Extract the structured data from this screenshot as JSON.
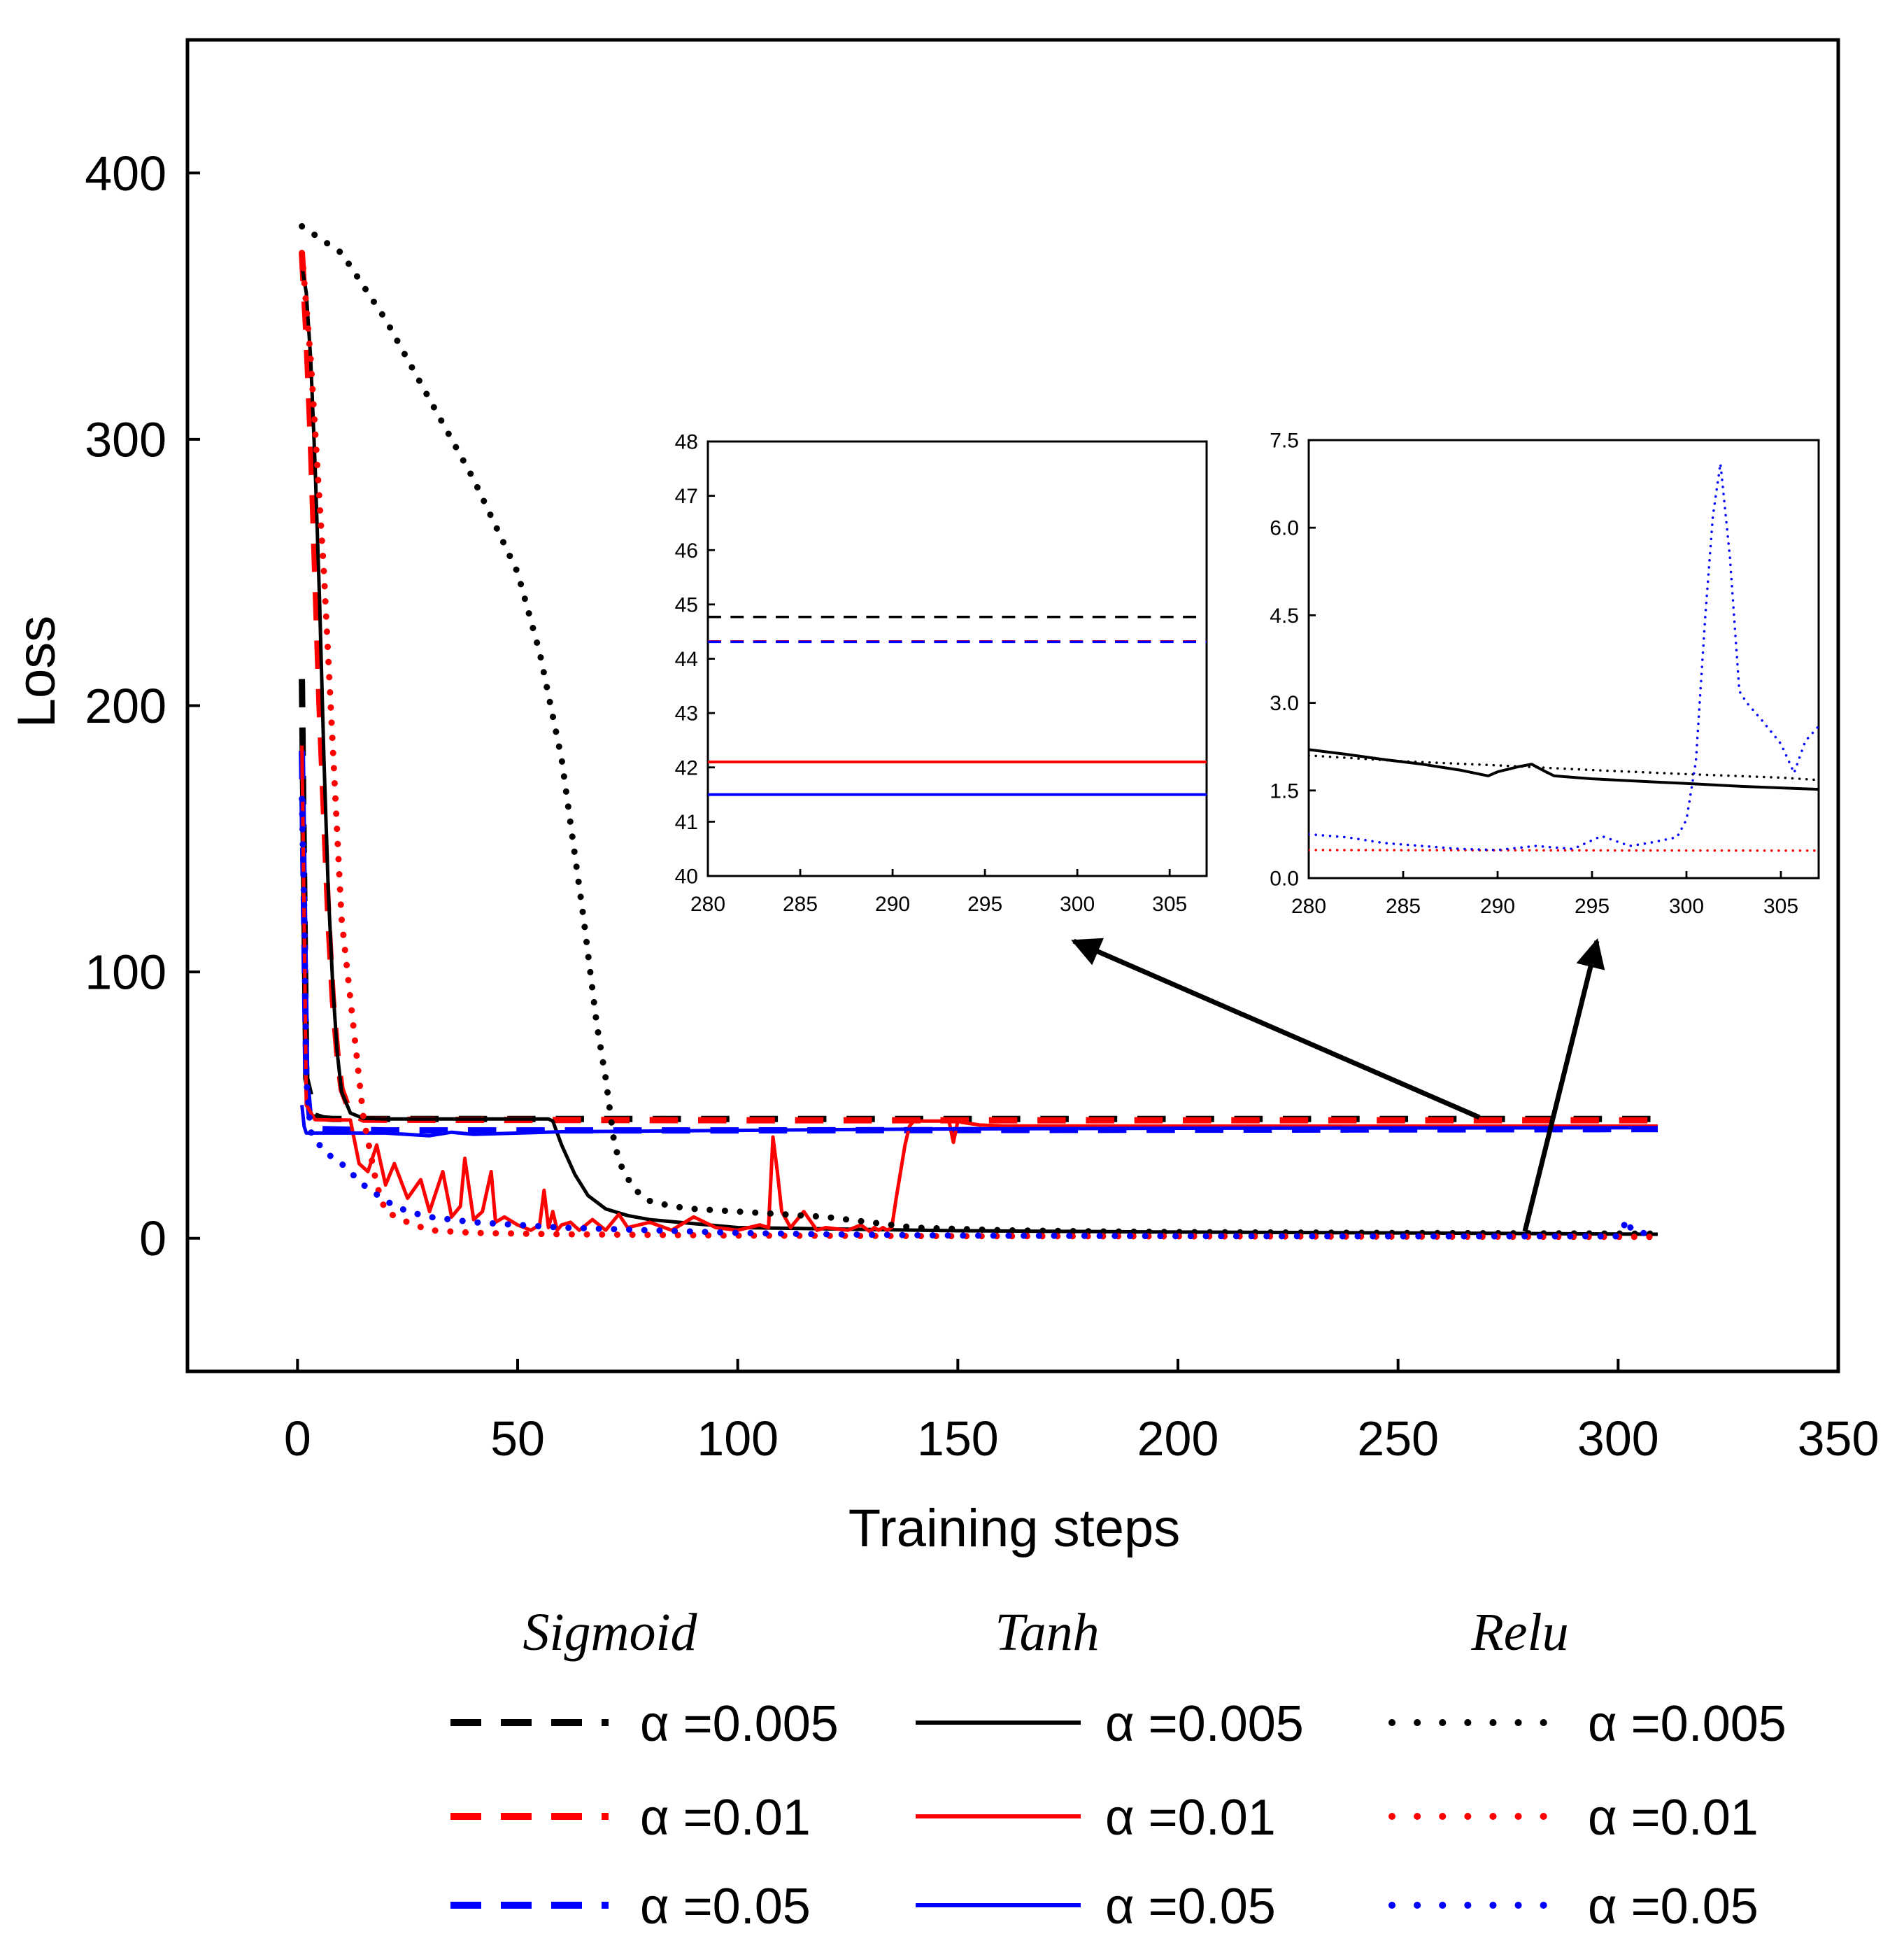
{
  "chart_data": [
    {
      "id": "main",
      "type": "line",
      "xlabel": "Training steps",
      "ylabel": "Loss",
      "xlim": [
        -25,
        350
      ],
      "ylim": [
        -50,
        450
      ],
      "xticks": [
        0,
        50,
        100,
        150,
        200,
        250,
        300,
        350
      ],
      "yticks": [
        0,
        100,
        200,
        300,
        400
      ],
      "series": [
        {
          "name": "Sigmoid α=0.005",
          "color": "#000000",
          "style": "dashed",
          "x": [
            1,
            2,
            4,
            6,
            8,
            10,
            20,
            100,
            200,
            309
          ],
          "y": [
            210,
            60,
            46,
            45,
            44.8,
            44.8,
            44.8,
            44.8,
            44.8,
            44.8
          ]
        },
        {
          "name": "Sigmoid α=0.01",
          "color": "#ff0000",
          "style": "dashed",
          "x": [
            1,
            2,
            3,
            4,
            5,
            6,
            7,
            8,
            9,
            10,
            12,
            15,
            100,
            309
          ],
          "y": [
            370,
            340,
            300,
            250,
            200,
            160,
            120,
            90,
            70,
            56,
            47,
            44.5,
            44.3,
            44.3
          ]
        },
        {
          "name": "Sigmoid α=0.05",
          "color": "#0000ff",
          "style": "dashed",
          "x": [
            1,
            1.5,
            2,
            3,
            5,
            20,
            100,
            309
          ],
          "y": [
            183,
            120,
            60,
            42,
            41,
            40.5,
            40.5,
            41
          ]
        },
        {
          "name": "Tanh α=0.005",
          "color": "#000000",
          "style": "solid",
          "x": [
            1,
            2,
            3,
            4,
            5,
            6,
            7,
            8,
            9,
            10,
            12,
            15,
            20,
            57,
            58,
            60,
            63,
            66,
            70,
            75,
            80,
            100,
            150,
            200,
            250,
            309
          ],
          "y": [
            365,
            355,
            330,
            290,
            240,
            180,
            130,
            95,
            70,
            55,
            47,
            45,
            44.8,
            44.8,
            44,
            35,
            24,
            16,
            11,
            8.5,
            7,
            4,
            2.8,
            2.3,
            2,
            1.5
          ]
        },
        {
          "name": "Tanh α=0.01",
          "color": "#ff0000",
          "style": "solid",
          "x": [
            1,
            1.5,
            2,
            4,
            8,
            12,
            14,
            16,
            18,
            20,
            22,
            25,
            28,
            30,
            33,
            35,
            37,
            38,
            40,
            42,
            44,
            45,
            47,
            50,
            53,
            55,
            56,
            57,
            58,
            59,
            60,
            62,
            64,
            67,
            70,
            73,
            75,
            80,
            85,
            90,
            95,
            100,
            105,
            107,
            108,
            109,
            110,
            112,
            115,
            118,
            120,
            125,
            128,
            130,
            131,
            132,
            133,
            134,
            135,
            136,
            137,
            138,
            139,
            140,
            141,
            142,
            145,
            148,
            149,
            150,
            151,
            155,
            160,
            200,
            250,
            309
          ],
          "y": [
            185,
            120,
            50,
            44.5,
            44.4,
            44.4,
            28,
            25,
            35,
            20,
            28,
            15,
            22,
            10,
            25,
            8,
            12,
            30,
            7,
            10,
            25,
            6,
            8,
            5,
            3,
            5,
            18,
            4,
            10,
            3,
            5,
            6,
            3,
            7,
            3,
            9,
            4,
            6,
            3,
            8,
            4,
            3,
            5,
            4,
            38,
            25,
            10,
            4,
            10,
            3,
            4,
            3,
            5,
            2.5,
            4,
            3,
            4,
            3,
            4,
            15,
            25,
            35,
            42,
            44,
            44,
            44,
            44,
            44,
            36,
            44,
            43.5,
            42.5,
            42.2,
            42.1,
            42.1,
            42.1
          ]
        },
        {
          "name": "Tanh α=0.05",
          "color": "#0000ff",
          "style": "solid",
          "x": [
            1,
            1.5,
            2,
            3,
            5,
            20,
            30,
            35,
            40,
            60,
            100,
            140,
            200,
            250,
            309
          ],
          "y": [
            50,
            42,
            39.5,
            39.5,
            39.5,
            39.5,
            38.5,
            39.8,
            39,
            40,
            40.5,
            41,
            41.3,
            41.4,
            41.5
          ]
        },
        {
          "name": "Relu α=0.005",
          "color": "#000000",
          "style": "dotted",
          "x": [
            1,
            10,
            20,
            30,
            40,
            50,
            55,
            60,
            65,
            68,
            70,
            72,
            74,
            76,
            78,
            80,
            85,
            90,
            100,
            110,
            120,
            130,
            140,
            150,
            160,
            170,
            180,
            200,
            250,
            309
          ],
          "y": [
            380,
            370,
            345,
            315,
            285,
            250,
            220,
            180,
            120,
            80,
            60,
            35,
            25,
            20,
            16,
            14,
            12,
            11,
            10,
            9,
            8,
            6,
            4,
            3.5,
            3,
            2.8,
            2.6,
            2.3,
            2,
            1.7
          ]
        },
        {
          "name": "Relu α=0.01",
          "color": "#ff0000",
          "style": "dotted",
          "x": [
            1,
            3,
            6,
            10,
            15,
            18,
            20,
            25,
            30,
            40,
            60,
            100,
            150,
            200,
            250,
            309
          ],
          "y": [
            370,
            330,
            250,
            120,
            45,
            20,
            10,
            6,
            3,
            2,
            1.5,
            1,
            0.8,
            0.7,
            0.6,
            0.5
          ]
        },
        {
          "name": "Relu α=0.05",
          "color": "#0000ff",
          "style": "dotted",
          "x": [
            1,
            1.5,
            2,
            3,
            5,
            8,
            10,
            15,
            20,
            25,
            30,
            40,
            50,
            60,
            80,
            100,
            120,
            150,
            200,
            250,
            300,
            301,
            302,
            303,
            305,
            306,
            309
          ],
          "y": [
            165,
            125,
            60,
            40,
            35,
            30,
            28,
            20,
            14,
            10,
            8,
            6,
            5,
            4,
            3,
            2,
            1.5,
            1,
            0.8,
            0.7,
            0.7,
            3.5,
            7.1,
            3.2,
            2.5,
            1.8,
            2.5
          ]
        }
      ]
    },
    {
      "id": "inset1",
      "type": "line",
      "xlim": [
        280,
        307
      ],
      "ylim": [
        40,
        48
      ],
      "xticks": [
        280,
        285,
        290,
        295,
        300,
        305
      ],
      "yticks": [
        40,
        41,
        42,
        43,
        44,
        45,
        46,
        47,
        48
      ],
      "series": [
        {
          "name": "Sigmoid α=0.005",
          "color": "#000000",
          "style": "dashed",
          "x": [
            280,
            307
          ],
          "y": [
            44.77,
            44.77
          ]
        },
        {
          "name": "Sigmoid α=0.01",
          "color": "#ff0000",
          "style": "dashed",
          "x": [
            280,
            307
          ],
          "y": [
            44.32,
            44.32
          ]
        },
        {
          "name": "Sigmoid α=0.05",
          "color": "#0000ff",
          "style": "dashed",
          "x": [
            280,
            307
          ],
          "y": [
            44.31,
            44.31
          ]
        },
        {
          "name": "Tanh α=0.01",
          "color": "#ff0000",
          "style": "solid",
          "x": [
            280,
            307
          ],
          "y": [
            42.1,
            42.1
          ]
        },
        {
          "name": "Tanh α=0.05",
          "color": "#0000ff",
          "style": "solid",
          "x": [
            280,
            307
          ],
          "y": [
            41.5,
            41.5
          ]
        }
      ]
    },
    {
      "id": "inset2",
      "type": "line",
      "xlim": [
        280,
        307
      ],
      "ylim": [
        0,
        7.5
      ],
      "yticks_labels": [
        "0.0",
        "1.5",
        "3.0",
        "4.5",
        "6.0",
        "7.5"
      ],
      "xticks": [
        280,
        285,
        290,
        295,
        300,
        305
      ],
      "yticks": [
        0,
        1.5,
        3.0,
        4.5,
        6.0,
        7.5
      ],
      "series": [
        {
          "name": "Tanh α=0.005",
          "color": "#000000",
          "style": "solid",
          "x": [
            280,
            282,
            284,
            286,
            288,
            289.5,
            290,
            291,
            291.8,
            292.5,
            293,
            295,
            298,
            300,
            303,
            307
          ],
          "y": [
            2.2,
            2.12,
            2.03,
            1.95,
            1.85,
            1.75,
            1.82,
            1.9,
            1.95,
            1.83,
            1.75,
            1.7,
            1.65,
            1.62,
            1.57,
            1.52
          ]
        },
        {
          "name": "Relu α=0.005",
          "color": "#000000",
          "style": "dotted",
          "x": [
            280,
            285,
            290,
            295,
            300,
            305,
            307
          ],
          "y": [
            2.1,
            2.0,
            1.93,
            1.85,
            1.78,
            1.72,
            1.68
          ]
        },
        {
          "name": "Relu α=0.01",
          "color": "#ff0000",
          "style": "dotted",
          "x": [
            280,
            307
          ],
          "y": [
            0.48,
            0.47
          ]
        },
        {
          "name": "Relu α=0.05",
          "color": "#0000ff",
          "style": "dotted",
          "x": [
            280,
            282,
            284,
            286,
            288,
            290,
            292,
            294,
            295.5,
            297,
            298,
            299.5,
            300,
            300.5,
            301,
            301.4,
            301.8,
            302.3,
            302.8,
            303.2,
            304,
            305,
            305.7,
            306.3,
            307
          ],
          "y": [
            0.75,
            0.7,
            0.6,
            0.55,
            0.5,
            0.48,
            0.55,
            0.5,
            0.72,
            0.55,
            0.6,
            0.7,
            1.0,
            2.0,
            4.5,
            6.2,
            7.1,
            5.5,
            3.2,
            3.0,
            2.7,
            2.3,
            1.8,
            2.35,
            2.6
          ]
        }
      ]
    }
  ],
  "legend": {
    "headers": [
      "Sigmoid",
      "Tanh",
      "Relu"
    ],
    "rows": [
      {
        "sigmoid_label": "α =0.005",
        "tanh_label": "α =0.005",
        "relu_label": "α =0.005",
        "color": "#000000"
      },
      {
        "sigmoid_label": "α =0.01",
        "tanh_label": "α =0.01",
        "relu_label": "α =0.01",
        "color": "#ff0000"
      },
      {
        "sigmoid_label": "α =0.05",
        "tanh_label": "α =0.05",
        "relu_label": "α =0.05",
        "color": "#0000ff"
      }
    ]
  }
}
